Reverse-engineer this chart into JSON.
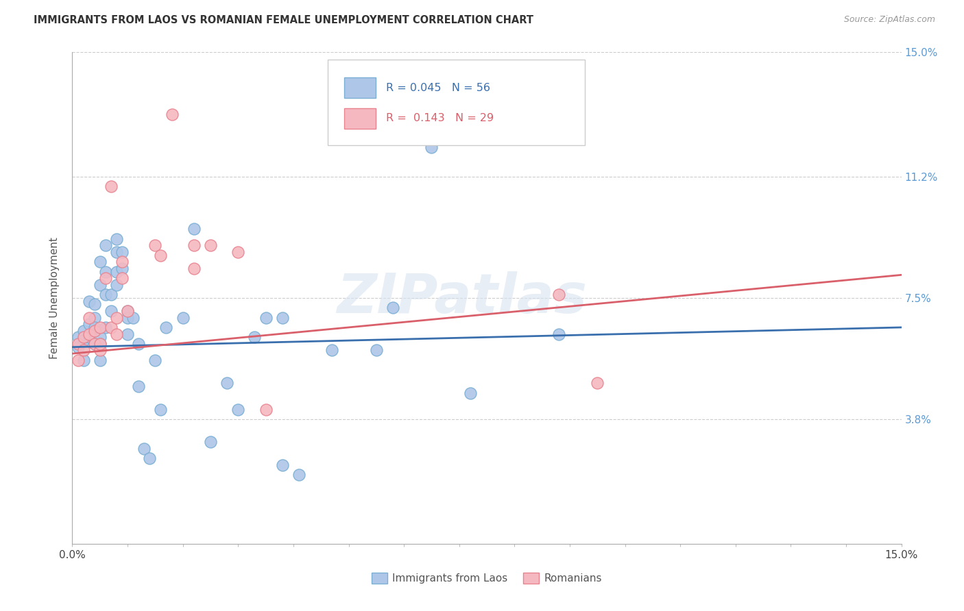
{
  "title": "IMMIGRANTS FROM LAOS VS ROMANIAN FEMALE UNEMPLOYMENT CORRELATION CHART",
  "source": "Source: ZipAtlas.com",
  "ylabel": "Female Unemployment",
  "xlim": [
    0,
    0.15
  ],
  "ylim": [
    0,
    0.15
  ],
  "ytick_values": [
    0.038,
    0.075,
    0.112,
    0.15
  ],
  "ytick_labels": [
    "3.8%",
    "7.5%",
    "11.2%",
    "15.0%"
  ],
  "xtick_positions": [
    0.0,
    0.01,
    0.02,
    0.03,
    0.04,
    0.05,
    0.06,
    0.07,
    0.08,
    0.09,
    0.1,
    0.11,
    0.12,
    0.13,
    0.14,
    0.15
  ],
  "xtick_labels": [
    "0.0%",
    "",
    "",
    "",
    "",
    "",
    "",
    "",
    "",
    "",
    "",
    "",
    "",
    "",
    "",
    "15.0%"
  ],
  "legend_label1": "Immigrants from Laos",
  "legend_label2": "Romanians",
  "legend_R1": "R = 0.045",
  "legend_N1": "N = 56",
  "legend_R2": "R =  0.143",
  "legend_N2": "N = 29",
  "blue_color": "#aec6e8",
  "pink_color": "#f5b8c0",
  "blue_edge": "#7bafd4",
  "pink_edge": "#e8848f",
  "trendline_blue": "#3a6fad",
  "trendline_pink": "#d95f6a",
  "background": "#ffffff",
  "watermark": "ZIPatlas",
  "blue_x": [
    0.001,
    0.001,
    0.002,
    0.002,
    0.002,
    0.003,
    0.003,
    0.003,
    0.004,
    0.004,
    0.004,
    0.004,
    0.005,
    0.005,
    0.005,
    0.005,
    0.005,
    0.006,
    0.006,
    0.006,
    0.006,
    0.007,
    0.007,
    0.008,
    0.008,
    0.008,
    0.008,
    0.009,
    0.009,
    0.01,
    0.01,
    0.01,
    0.011,
    0.012,
    0.012,
    0.013,
    0.014,
    0.015,
    0.016,
    0.017,
    0.02,
    0.022,
    0.025,
    0.028,
    0.03,
    0.033,
    0.035,
    0.038,
    0.038,
    0.041,
    0.047,
    0.055,
    0.058,
    0.065,
    0.072,
    0.088
  ],
  "blue_y": [
    0.063,
    0.06,
    0.065,
    0.062,
    0.056,
    0.074,
    0.067,
    0.063,
    0.069,
    0.073,
    0.066,
    0.061,
    0.086,
    0.079,
    0.063,
    0.061,
    0.056,
    0.091,
    0.083,
    0.076,
    0.066,
    0.076,
    0.071,
    0.093,
    0.089,
    0.083,
    0.079,
    0.089,
    0.084,
    0.071,
    0.069,
    0.064,
    0.069,
    0.061,
    0.048,
    0.029,
    0.026,
    0.056,
    0.041,
    0.066,
    0.069,
    0.096,
    0.031,
    0.049,
    0.041,
    0.063,
    0.069,
    0.069,
    0.024,
    0.021,
    0.059,
    0.059,
    0.072,
    0.121,
    0.046,
    0.064
  ],
  "pink_x": [
    0.001,
    0.001,
    0.002,
    0.002,
    0.003,
    0.003,
    0.004,
    0.004,
    0.005,
    0.005,
    0.005,
    0.006,
    0.007,
    0.007,
    0.008,
    0.008,
    0.009,
    0.009,
    0.01,
    0.015,
    0.016,
    0.018,
    0.022,
    0.022,
    0.025,
    0.03,
    0.035,
    0.088,
    0.095
  ],
  "pink_y": [
    0.061,
    0.056,
    0.063,
    0.059,
    0.069,
    0.064,
    0.061,
    0.065,
    0.066,
    0.059,
    0.061,
    0.081,
    0.109,
    0.066,
    0.069,
    0.064,
    0.086,
    0.081,
    0.071,
    0.091,
    0.088,
    0.131,
    0.091,
    0.084,
    0.091,
    0.089,
    0.041,
    0.076,
    0.049
  ],
  "blue_trend_x": [
    0.0,
    0.15
  ],
  "blue_trend_y": [
    0.06,
    0.066
  ],
  "pink_trend_x": [
    0.0,
    0.15
  ],
  "pink_trend_y": [
    0.058,
    0.082
  ]
}
